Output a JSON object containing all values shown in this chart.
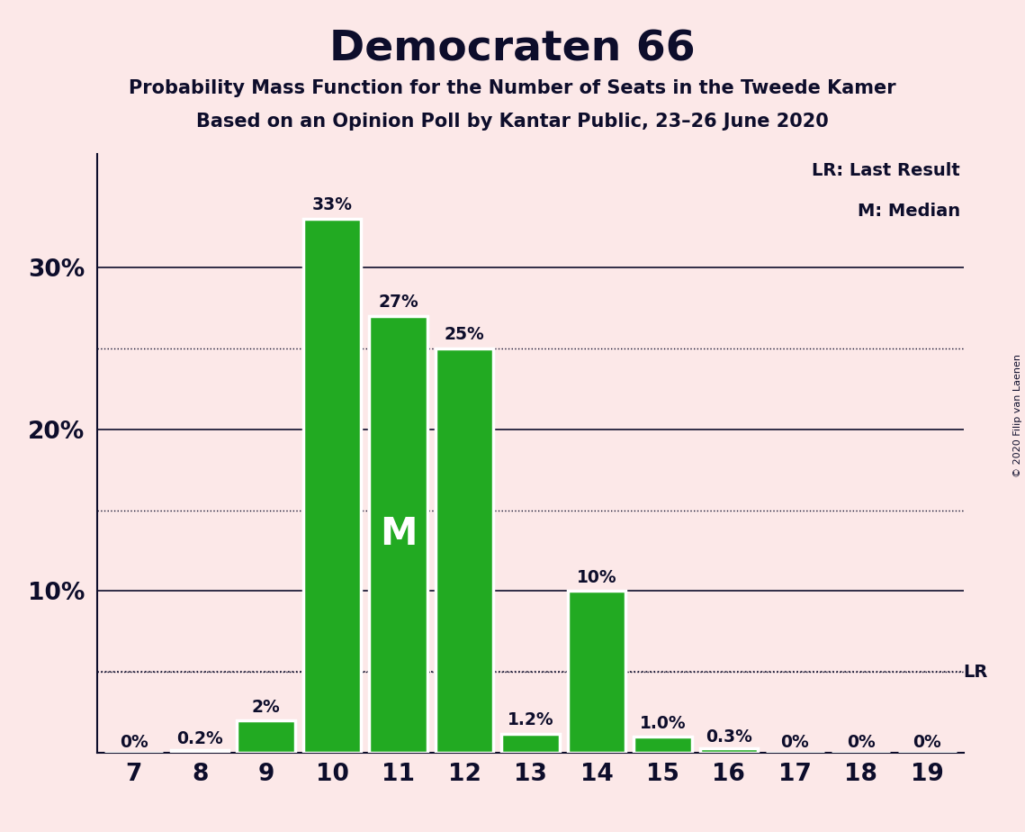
{
  "title": "Democraten 66",
  "subtitle1": "Probability Mass Function for the Number of Seats in the Tweede Kamer",
  "subtitle2": "Based on an Opinion Poll by Kantar Public, 23–26 June 2020",
  "copyright": "© 2020 Filip van Laenen",
  "categories": [
    7,
    8,
    9,
    10,
    11,
    12,
    13,
    14,
    15,
    16,
    17,
    18,
    19
  ],
  "values": [
    0.0,
    0.2,
    2.0,
    33.0,
    27.0,
    25.0,
    1.2,
    10.0,
    1.0,
    0.3,
    0.0,
    0.0,
    0.0
  ],
  "bar_labels": [
    "0%",
    "0.2%",
    "2%",
    "33%",
    "27%",
    "25%",
    "1.2%",
    "10%",
    "1.0%",
    "0.3%",
    "0%",
    "0%",
    "0%"
  ],
  "bar_color": "#22aa22",
  "bar_edge_color": "#ffffff",
  "background_color": "#fce8e8",
  "text_color": "#0d0d2b",
  "median_seat": 11,
  "median_label": "M",
  "lr_value": 5.0,
  "lr_label": "LR",
  "yticks_major": [
    10,
    20,
    30
  ],
  "yticks_minor": [
    5,
    15,
    25
  ],
  "ylim": [
    0,
    37
  ],
  "legend_lr": "LR: Last Result",
  "legend_m": "M: Median"
}
